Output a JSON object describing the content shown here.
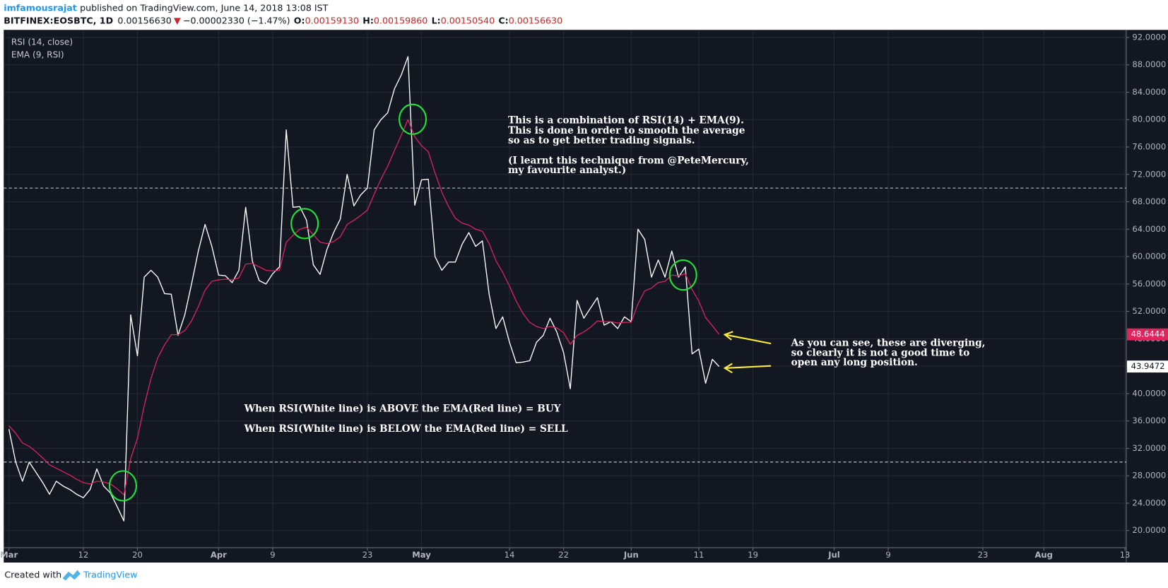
{
  "header": {
    "author": "imfamousrajat",
    "published": "published on TradingView.com, June 14, 2018 13:08 IST",
    "symbol": "BITFINEX:EOSBTC, 1D",
    "last": "0.00156630",
    "arrow": "▼",
    "change": "−0.00002330 (−1.47%)",
    "ohlc": [
      {
        "key": "O:",
        "value": "0.00159130"
      },
      {
        "key": "H:",
        "value": "0.00159860"
      },
      {
        "key": "L:",
        "value": "0.00150540"
      },
      {
        "key": "C:",
        "value": "0.00156630"
      }
    ]
  },
  "chart_data": {
    "type": "line",
    "categories": [
      "Mar",
      null,
      null,
      null,
      null,
      null,
      null,
      null,
      null,
      null,
      null,
      "12",
      null,
      null,
      null,
      null,
      null,
      null,
      null,
      "20",
      null,
      null,
      null,
      null,
      null,
      null,
      null,
      null,
      null,
      null,
      null,
      "Apr",
      null,
      null,
      null,
      null,
      null,
      null,
      null,
      "9",
      null,
      null,
      null,
      null,
      null,
      null,
      null,
      null,
      null,
      null,
      null,
      null,
      null,
      "23",
      null,
      null,
      null,
      null,
      null,
      null,
      null,
      "May",
      null,
      null,
      null,
      null,
      null,
      null,
      null,
      null,
      null,
      null,
      null,
      null,
      "14",
      null,
      null,
      null,
      null,
      null,
      null,
      null,
      "22",
      null,
      null,
      null,
      null,
      null,
      null,
      null,
      null,
      null,
      "Jun",
      null,
      null,
      null,
      null,
      null,
      null,
      null,
      null,
      null,
      "11",
      null,
      null,
      null,
      null,
      null,
      null,
      null,
      "19",
      null,
      null,
      null,
      null,
      null,
      null,
      null,
      null,
      null,
      null,
      null,
      "Jul",
      null,
      null,
      null,
      null,
      null,
      null,
      null,
      "9",
      null,
      null,
      null,
      null,
      null,
      null,
      null,
      null,
      null,
      null,
      null,
      null,
      null,
      "23",
      null,
      null,
      null,
      null,
      null,
      null,
      null,
      null,
      "Aug",
      null,
      null,
      null,
      null,
      null,
      null,
      null,
      null,
      null,
      null,
      null,
      "13"
    ],
    "series": [
      {
        "name": "RSI (14, close)",
        "color": "#ffffff",
        "values": [
          34.8,
          30,
          27.2,
          30,
          28.5,
          27,
          25.3,
          27.2,
          26.5,
          26,
          25.3,
          24.8,
          26,
          29,
          26.5,
          25.5,
          23.5,
          21.4,
          51.5,
          45.5,
          57,
          58,
          57,
          54.6,
          54.5,
          48.5,
          51.5,
          56,
          60.8,
          64.7,
          61.5,
          57.3,
          57.2,
          56.2,
          58,
          67.2,
          59.3,
          56.5,
          56,
          57.5,
          58.5,
          78.5,
          67.2,
          67.3,
          65.3,
          58.8,
          57.4,
          61,
          63.5,
          65.5,
          72,
          67.4,
          69,
          70,
          78.5,
          80,
          81,
          84.5,
          86.5,
          89.2,
          67.5,
          71.2,
          71.3,
          60,
          58,
          59.2,
          59.2,
          61.8,
          63.5,
          61.5,
          62.3,
          54.5,
          49.5,
          51.2,
          47.5,
          44.5,
          44.6,
          44.8,
          47.5,
          48.5,
          51,
          49,
          46,
          40.7,
          53.6,
          51,
          52.5,
          54,
          50,
          50.5,
          49.5,
          51.2,
          50.5,
          64,
          62.5,
          57,
          59.5,
          57,
          60.8,
          57,
          58.5,
          45.8,
          46.5,
          41.5,
          45,
          43.9472,
          null,
          null,
          null,
          null,
          null,
          null,
          null,
          null,
          null,
          null,
          null,
          null,
          null,
          null,
          null,
          null,
          null,
          null,
          null,
          null,
          null,
          null,
          null,
          null,
          null,
          null,
          null,
          null,
          null,
          null,
          null,
          null,
          null,
          null,
          null,
          null,
          null,
          null,
          null,
          null,
          null,
          null,
          null,
          null,
          null,
          null,
          null,
          null,
          null,
          null,
          null,
          null,
          null,
          null,
          null,
          null,
          null,
          null,
          null,
          null
        ]
      },
      {
        "name": "EMA (9, RSI)",
        "color": "#e0245e",
        "values": [
          35.3,
          34.2,
          32.8,
          32.3,
          31.5,
          30.6,
          29.6,
          29.1,
          28.6,
          28.1,
          27.5,
          27,
          26.8,
          27.2,
          27.1,
          26.8,
          26.1,
          25.2,
          30.5,
          33.5,
          38.2,
          42.2,
          45.2,
          47.1,
          48.6,
          48.6,
          49.2,
          50.6,
          52.7,
          55.1,
          56.4,
          56.6,
          56.7,
          56.6,
          56.9,
          58.9,
          59,
          58.5,
          58,
          57.9,
          58,
          62.1,
          63.1,
          64,
          64.3,
          63.2,
          62.1,
          61.9,
          62.2,
          62.9,
          64.7,
          65.3,
          66,
          66.8,
          69.1,
          71.3,
          73.2,
          75.5,
          77.7,
          80,
          77.5,
          76.2,
          75.3,
          72.2,
          69.4,
          67.3,
          65.6,
          64.9,
          64.6,
          64,
          63.7,
          61.9,
          59.4,
          57.7,
          55.7,
          53.5,
          51.7,
          50.4,
          49.8,
          49.5,
          49.8,
          49.6,
          48.9,
          47.2,
          48.5,
          49,
          49.7,
          50.6,
          50.5,
          50.5,
          50.3,
          50.4,
          50.4,
          53.1,
          55,
          55.4,
          56.2,
          56.4,
          57.3,
          57.2,
          57.5,
          55.2,
          53.5,
          51.1,
          49.9,
          48.6444,
          null,
          null,
          null,
          null,
          null,
          null,
          null,
          null,
          null,
          null,
          null,
          null,
          null,
          null,
          null,
          null,
          null,
          null,
          null,
          null,
          null,
          null,
          null,
          null,
          null,
          null,
          null,
          null,
          null,
          null,
          null,
          null,
          null,
          null,
          null,
          null,
          null,
          null,
          null,
          null,
          null,
          null,
          null,
          null,
          null,
          null,
          null,
          null,
          null,
          null,
          null,
          null,
          null,
          null,
          null,
          null,
          null,
          null,
          null,
          null
        ]
      }
    ],
    "ylim": [
      17.5,
      93.1
    ],
    "yticks": [
      {
        "value": 20,
        "label": "20.0000"
      },
      {
        "value": 24,
        "label": "24.0000"
      },
      {
        "value": 28,
        "label": "28.0000"
      },
      {
        "value": 32,
        "label": "32.0000"
      },
      {
        "value": 36,
        "label": "36.0000"
      },
      {
        "value": 40,
        "label": "40.0000"
      },
      {
        "value": 44,
        "label": "44.0000"
      },
      {
        "value": 48,
        "label": "48.0000"
      },
      {
        "value": 52,
        "label": "52.0000"
      },
      {
        "value": 56,
        "label": "56.0000"
      },
      {
        "value": 60,
        "label": "60.0000"
      },
      {
        "value": 64,
        "label": "64.0000"
      },
      {
        "value": 68,
        "label": "68.0000"
      },
      {
        "value": 72,
        "label": "72.0000"
      },
      {
        "value": 76,
        "label": "76.0000"
      },
      {
        "value": 80,
        "label": "80.0000"
      },
      {
        "value": 84,
        "label": "84.0000"
      },
      {
        "value": 88,
        "label": "88.0000"
      },
      {
        "value": 92,
        "label": "92.0000"
      }
    ],
    "hlines": [
      70,
      30
    ],
    "grid": true,
    "annotations": [
      {
        "lines": [
          "This is a combination of RSI(14) + EMA(9).",
          "This is done in order to smooth the average",
          "so as to get better trading signals.",
          "(I learnt this technique from @PeteMercury,",
          "my favourite analyst.)"
        ]
      },
      {
        "lines": [
          "When RSI(White line) is ABOVE the EMA(Red line) = BUY",
          "When RSI(White line) is BELOW the EMA(Red line) = SELL"
        ]
      },
      {
        "lines": [
          "As you can see, these are diverging,",
          "so clearly it is not a good time to",
          "open any long position."
        ]
      }
    ]
  },
  "footer": {
    "created": "Created with",
    "brand": "TradingView"
  }
}
